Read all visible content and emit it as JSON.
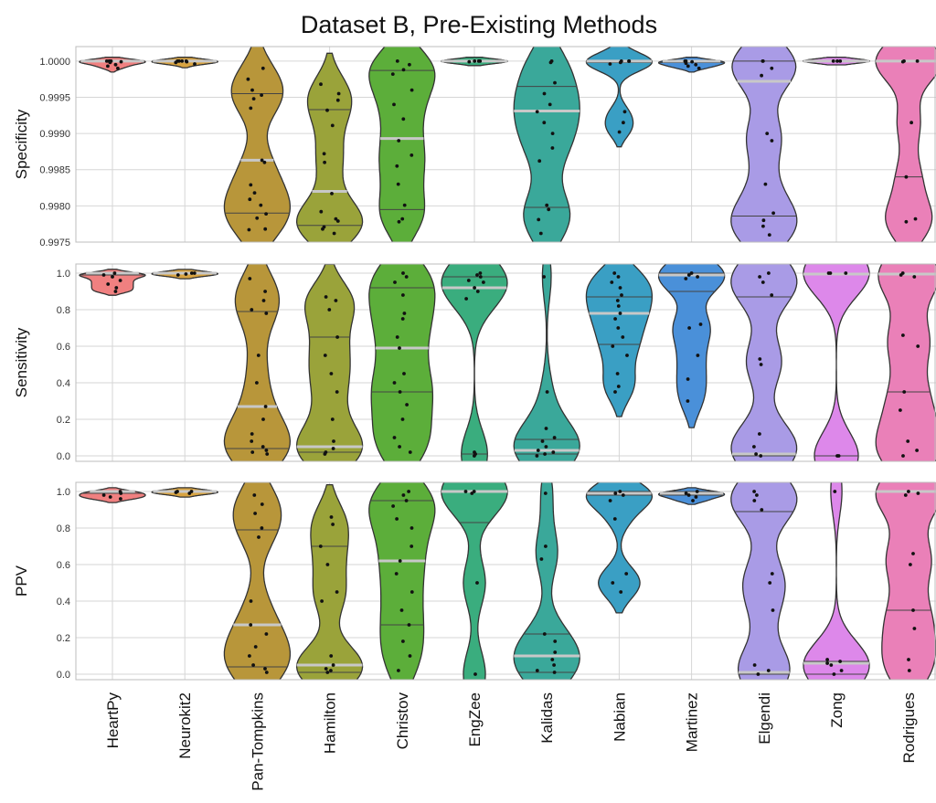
{
  "chart_data": {
    "type": "violin",
    "title": "Dataset B, Pre-Existing Methods",
    "categories": [
      "HeartPy",
      "Neurokit2",
      "Pan-Tompkins",
      "Hamilton",
      "Christov",
      "EngZee",
      "Kalidas",
      "Nabian",
      "Martinez",
      "Elgendi",
      "Zong",
      "Rodrigues"
    ],
    "colors": [
      "#f08080",
      "#d9a441",
      "#b8963a",
      "#9aa33a",
      "#5cae3a",
      "#3aad7e",
      "#3aa89a",
      "#3a9fc4",
      "#4a90d9",
      "#a99be6",
      "#dd88ea",
      "#ea80b8"
    ],
    "panels": [
      {
        "ylabel": "Specificity",
        "ylim": [
          0.9975,
          1.0002
        ],
        "yticks": [
          0.9975,
          0.998,
          0.9985,
          0.999,
          0.9995,
          1.0
        ],
        "yticklabels": [
          "0.9975",
          "0.9980",
          "0.9985",
          "0.9990",
          "0.9995",
          "1.0000"
        ],
        "medians": [
          1.0,
          1.0,
          0.99863,
          0.9982,
          0.99893,
          1.0,
          0.99931,
          1.0,
          1.0,
          0.99972,
          1.0,
          1.0
        ],
        "quartiles": [
          [
            1.0,
            1.0
          ],
          [
            1.0,
            1.0
          ],
          [
            0.9979,
            0.99955
          ],
          [
            0.99773,
            0.99933
          ],
          [
            0.99795,
            0.99987
          ],
          [
            1.0,
            1.0
          ],
          [
            0.99798,
            0.99965
          ],
          [
            0.99998,
            1.0
          ],
          [
            0.99998,
            1.0
          ],
          [
            0.99786,
            1.0
          ],
          [
            1.0,
            1.0
          ],
          [
            0.9984,
            1.0
          ]
        ],
        "points": [
          [
            1.0,
            1.0,
            0.99999,
            0.99998,
            0.99995,
            0.99993,
            0.9999,
            1.0,
            1.0
          ],
          [
            1.0,
            1.0,
            0.99999,
            0.99998,
            0.99996,
            1.0,
            1.0
          ],
          [
            0.9999,
            0.99975,
            0.9996,
            0.99953,
            0.99948,
            0.99935,
            0.99863,
            0.9986,
            0.99829,
            0.99818,
            0.99809,
            0.99801,
            0.99789,
            0.99783,
            0.99767,
            0.99768
          ],
          [
            0.99968,
            0.99955,
            0.99946,
            0.99932,
            0.99911,
            0.99872,
            0.9986,
            0.99817,
            0.99792,
            0.99782,
            0.99771,
            0.99768,
            0.99762,
            0.99779
          ],
          [
            1.0,
            0.99995,
            0.99988,
            0.99982,
            0.9996,
            0.9994,
            0.9992,
            0.9989,
            0.9987,
            0.99855,
            0.9983,
            0.99801,
            0.99782,
            0.99778
          ],
          [
            1.0,
            1.0,
            0.99999,
            1.0
          ],
          [
            1.0,
            0.99998,
            0.9997,
            0.99955,
            0.9994,
            0.9993,
            0.99915,
            0.999,
            0.9988,
            0.99862,
            0.99801,
            0.99795,
            0.99781,
            0.99762
          ],
          [
            1.0,
            1.0,
            0.99998,
            0.99996,
            1.0,
            0.9993,
            0.99915,
            0.99902
          ],
          [
            1.0,
            0.99999,
            0.99997,
            0.99995,
            0.99993,
            0.9999,
            1.0
          ],
          [
            1.0,
            1.0,
            0.9999,
            0.9998,
            0.999,
            0.9989,
            0.9983,
            0.9979,
            0.9978,
            0.99772,
            0.9976
          ],
          [
            1.0,
            1.0,
            1.0
          ],
          [
            1.0,
            1.0,
            0.99999,
            0.99915,
            0.9984,
            0.99782,
            0.99778
          ]
        ]
      },
      {
        "ylabel": "Sensitivity",
        "ylim": [
          -0.03,
          1.05
        ],
        "yticks": [
          0.0,
          0.2,
          0.4,
          0.6,
          0.8,
          1.0
        ],
        "yticklabels": [
          "0.0",
          "0.2",
          "0.4",
          "0.6",
          "0.8",
          "1.0"
        ],
        "medians": [
          1.0,
          1.0,
          0.27,
          0.05,
          0.59,
          0.92,
          0.03,
          0.78,
          0.99,
          0.01,
          0.995,
          0.995
        ],
        "quartiles": [
          [
            0.99,
            1.0
          ],
          [
            1.0,
            1.0
          ],
          [
            0.04,
            0.79
          ],
          [
            0.02,
            0.65
          ],
          [
            0.35,
            0.92
          ],
          [
            0.01,
            0.98
          ],
          [
            0.01,
            0.09
          ],
          [
            0.61,
            0.87
          ],
          [
            0.9,
            1.0
          ],
          [
            0.0,
            0.87
          ],
          [
            0.0,
            1.0
          ],
          [
            0.35,
            1.0
          ]
        ],
        "points": [
          [
            1.0,
            0.99,
            0.98,
            0.96,
            0.94,
            0.92,
            0.9
          ],
          [
            1.0,
            1.0,
            0.99,
            0.995
          ],
          [
            0.97,
            0.9,
            0.85,
            0.8,
            0.78,
            0.55,
            0.4,
            0.27,
            0.2,
            0.12,
            0.08,
            0.05,
            0.03,
            0.02,
            0.01
          ],
          [
            0.87,
            0.85,
            0.8,
            0.65,
            0.55,
            0.45,
            0.35,
            0.2,
            0.08,
            0.04,
            0.02,
            0.01
          ],
          [
            1.0,
            0.98,
            0.95,
            0.88,
            0.78,
            0.75,
            0.65,
            0.59,
            0.45,
            0.4,
            0.35,
            0.28,
            0.2,
            0.1,
            0.05,
            0.02
          ],
          [
            1.0,
            0.99,
            0.98,
            0.96,
            0.95,
            0.92,
            0.9,
            0.86,
            0.02,
            0.01,
            0.0
          ],
          [
            0.98,
            0.35,
            0.15,
            0.1,
            0.08,
            0.05,
            0.03,
            0.02,
            0.01,
            0.0
          ],
          [
            1.0,
            0.98,
            0.95,
            0.92,
            0.88,
            0.85,
            0.82,
            0.78,
            0.75,
            0.7,
            0.65,
            0.6,
            0.55,
            0.45,
            0.38,
            0.35
          ],
          [
            1.0,
            0.99,
            0.98,
            0.97,
            0.72,
            0.7,
            0.55,
            0.42,
            0.3
          ],
          [
            1.0,
            0.98,
            0.95,
            0.88,
            0.53,
            0.5,
            0.12,
            0.05,
            0.01,
            0.0
          ],
          [
            1.0,
            1.0,
            1.0,
            0.0,
            0.0
          ],
          [
            1.0,
            0.99,
            0.98,
            0.66,
            0.6,
            0.35,
            0.25,
            0.08,
            0.03,
            0.0
          ]
        ]
      },
      {
        "ylabel": "PPV",
        "ylim": [
          -0.03,
          1.05
        ],
        "yticks": [
          0.0,
          0.2,
          0.4,
          0.6,
          0.8,
          1.0
        ],
        "yticklabels": [
          "0.0",
          "0.2",
          "0.4",
          "0.6",
          "0.8",
          "1.0"
        ],
        "medians": [
          1.0,
          1.0,
          0.27,
          0.05,
          0.62,
          1.0,
          0.1,
          0.99,
          0.99,
          0.01,
          0.06,
          1.0
        ],
        "quartiles": [
          [
            0.99,
            1.0
          ],
          [
            1.0,
            1.0
          ],
          [
            0.04,
            0.79
          ],
          [
            0.01,
            0.7
          ],
          [
            0.27,
            0.95
          ],
          [
            0.83,
            1.0
          ],
          [
            0.01,
            0.22
          ],
          [
            0.98,
            1.0
          ],
          [
            0.98,
            1.0
          ],
          [
            0.0,
            0.89
          ],
          [
            0.0,
            0.07
          ],
          [
            0.35,
            1.0
          ]
        ],
        "points": [
          [
            1.0,
            0.99,
            0.98,
            0.97,
            0.96
          ],
          [
            1.0,
            1.0,
            0.99,
            0.995
          ],
          [
            0.98,
            0.93,
            0.88,
            0.8,
            0.75,
            0.4,
            0.27,
            0.22,
            0.15,
            0.1,
            0.05,
            0.03,
            0.01
          ],
          [
            0.86,
            0.82,
            0.7,
            0.6,
            0.45,
            0.4,
            0.1,
            0.05,
            0.03,
            0.02,
            0.01
          ],
          [
            1.0,
            0.98,
            0.95,
            0.92,
            0.85,
            0.8,
            0.7,
            0.62,
            0.55,
            0.45,
            0.35,
            0.27,
            0.18,
            0.1,
            0.02
          ],
          [
            1.0,
            1.0,
            0.99,
            0.5,
            0.0
          ],
          [
            0.99,
            0.7,
            0.63,
            0.22,
            0.18,
            0.12,
            0.08,
            0.05,
            0.02,
            0.01
          ],
          [
            1.0,
            0.99,
            0.98,
            0.95,
            0.85,
            0.55,
            0.5,
            0.45
          ],
          [
            1.0,
            0.99,
            0.98,
            0.97,
            0.95
          ],
          [
            1.0,
            0.98,
            0.95,
            0.9,
            0.55,
            0.5,
            0.35,
            0.05,
            0.02,
            0.0
          ],
          [
            1.0,
            0.08,
            0.07,
            0.06,
            0.05,
            0.02,
            0.0
          ],
          [
            1.0,
            0.99,
            0.98,
            0.66,
            0.6,
            0.35,
            0.25,
            0.08,
            0.02
          ]
        ]
      }
    ]
  }
}
